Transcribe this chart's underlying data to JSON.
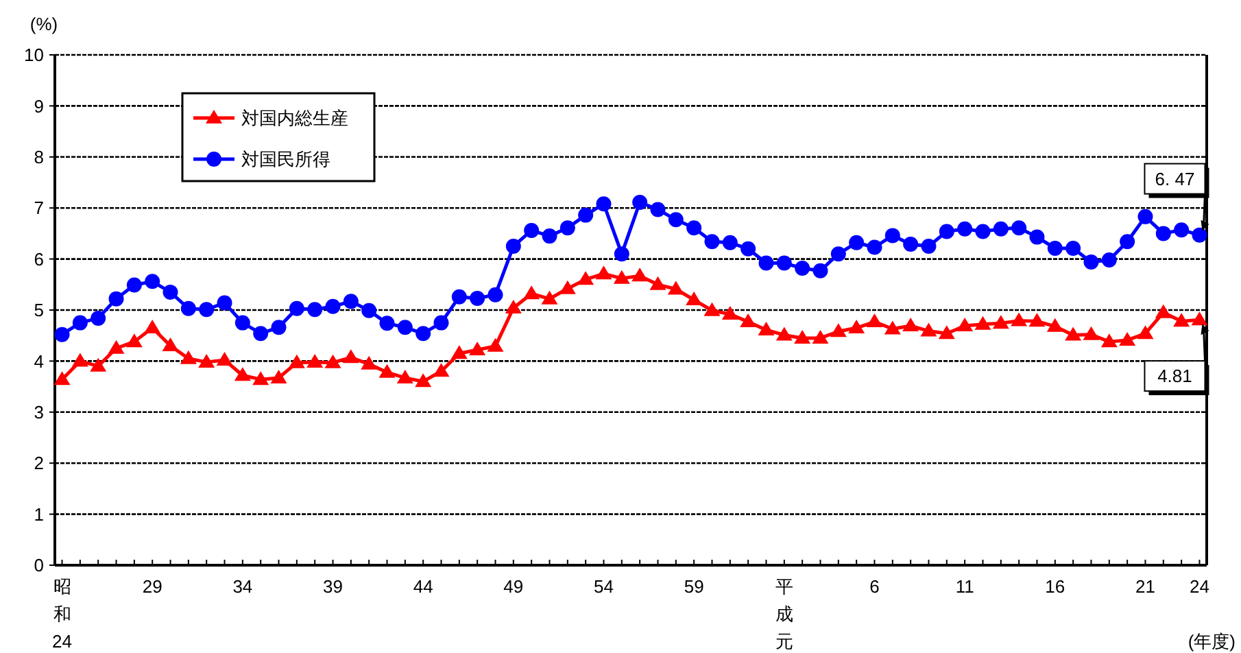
{
  "chart_data": {
    "type": "line",
    "categories": [
      "昭和24",
      null,
      null,
      null,
      null,
      "29",
      null,
      null,
      null,
      null,
      "34",
      null,
      null,
      null,
      null,
      "39",
      null,
      null,
      null,
      null,
      "44",
      null,
      null,
      null,
      null,
      "49",
      null,
      null,
      null,
      null,
      "54",
      null,
      null,
      null,
      null,
      "59",
      null,
      null,
      null,
      null,
      "平成元",
      null,
      null,
      null,
      null,
      "6",
      null,
      null,
      null,
      null,
      "11",
      null,
      null,
      null,
      null,
      "16",
      null,
      null,
      null,
      null,
      "21",
      null,
      null,
      "24"
    ],
    "series": [
      {
        "name": "対国内総生産",
        "color": "#ff0000",
        "marker": "triangle",
        "values": [
          3.64,
          4.0,
          3.9,
          4.25,
          4.38,
          4.65,
          4.3,
          4.05,
          3.98,
          4.02,
          3.72,
          3.64,
          3.67,
          3.97,
          3.98,
          3.97,
          4.07,
          3.94,
          3.78,
          3.67,
          3.6,
          3.8,
          4.15,
          4.22,
          4.29,
          5.04,
          5.32,
          5.22,
          5.42,
          5.6,
          5.71,
          5.62,
          5.67,
          5.5,
          5.41,
          5.2,
          4.99,
          4.92,
          4.77,
          4.61,
          4.51,
          4.45,
          4.45,
          4.58,
          4.65,
          4.77,
          4.63,
          4.69,
          4.59,
          4.54,
          4.69,
          4.72,
          4.74,
          4.79,
          4.78,
          4.68,
          4.51,
          4.52,
          4.38,
          4.41,
          4.54,
          4.95,
          4.78,
          4.81
        ]
      },
      {
        "name": "対国民所得",
        "color": "#0000ff",
        "marker": "circle",
        "values": [
          4.52,
          4.75,
          4.84,
          5.22,
          5.49,
          5.56,
          5.35,
          5.03,
          5.01,
          5.14,
          4.75,
          4.54,
          4.66,
          5.03,
          5.01,
          5.07,
          5.17,
          4.99,
          4.74,
          4.66,
          4.54,
          4.75,
          5.26,
          5.23,
          5.3,
          6.25,
          6.56,
          6.45,
          6.61,
          6.86,
          7.08,
          6.1,
          7.11,
          6.97,
          6.77,
          6.61,
          6.34,
          6.32,
          6.2,
          5.92,
          5.92,
          5.82,
          5.77,
          6.1,
          6.32,
          6.23,
          6.46,
          6.29,
          6.25,
          6.54,
          6.59,
          6.54,
          6.59,
          6.61,
          6.43,
          6.21,
          6.21,
          5.94,
          5.98,
          6.34,
          6.83,
          6.5,
          6.57,
          6.47
        ]
      }
    ],
    "ylabel": "(%)",
    "xlabel": "(年度)",
    "ylim": [
      0,
      10
    ],
    "yticks": [
      0,
      1,
      2,
      3,
      4,
      5,
      6,
      7,
      8,
      9,
      10
    ],
    "grid": "y",
    "legend": "top left",
    "line_style": "solid",
    "annotations": [
      {
        "text": "6. 47",
        "x": "24",
        "y": 6.47
      },
      {
        "text": "4.81",
        "x": "24",
        "y": 4.81
      }
    ]
  }
}
